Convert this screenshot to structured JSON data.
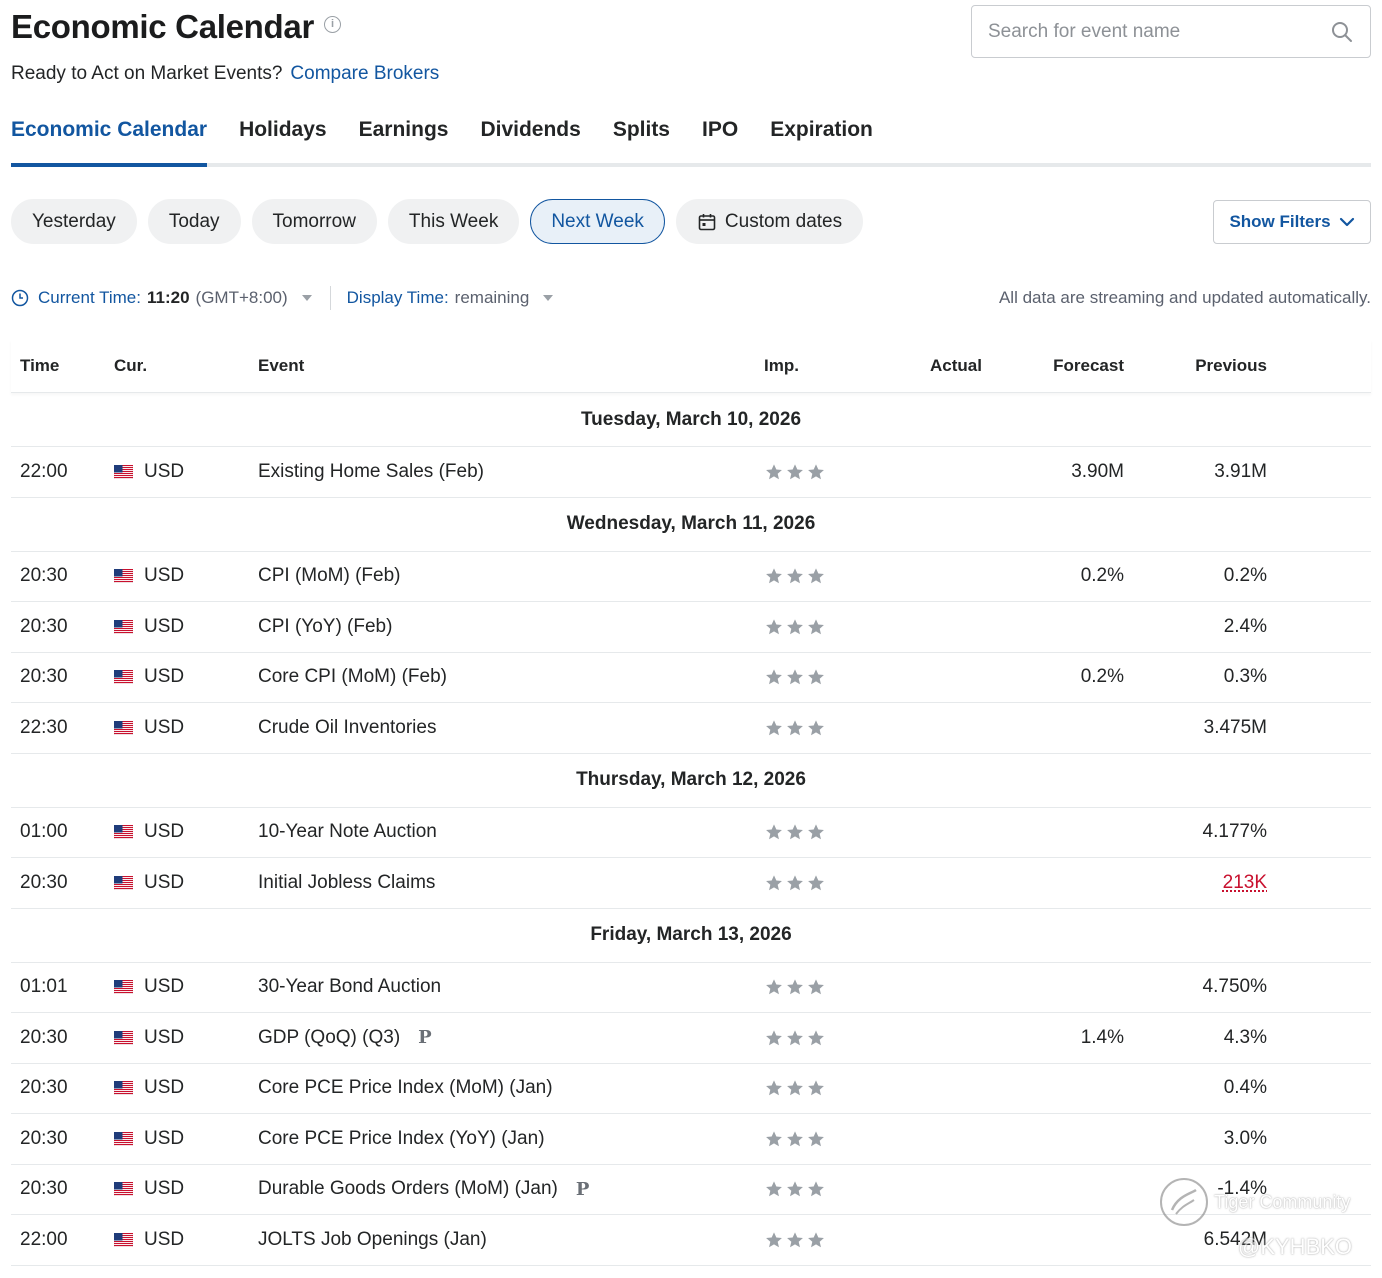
{
  "header": {
    "title": "Economic Calendar",
    "info_icon": "i",
    "subtitle": "Ready to Act on Market Events?",
    "compare_link": "Compare Brokers"
  },
  "search": {
    "placeholder": "Search for event name",
    "value": ""
  },
  "tabs": [
    "Economic Calendar",
    "Holidays",
    "Earnings",
    "Dividends",
    "Splits",
    "IPO",
    "Expiration"
  ],
  "active_tab": "Economic Calendar",
  "periods": [
    "Yesterday",
    "Today",
    "Tomorrow",
    "This Week",
    "Next Week",
    "Custom dates"
  ],
  "active_period": "Next Week",
  "filters_label": "Show Filters",
  "time_bar": {
    "current_label": "Current Time:",
    "current_value": "11:20",
    "timezone": "(GMT+8:00)",
    "display_label": "Display Time:",
    "display_value": "remaining",
    "note": "All data are streaming and updated automatically."
  },
  "columns": {
    "time": "Time",
    "currency": "Cur.",
    "event": "Event",
    "importance": "Imp.",
    "actual": "Actual",
    "forecast": "Forecast",
    "previous": "Previous"
  },
  "groups": [
    {
      "date": "Tuesday, March 10, 2026",
      "events": [
        {
          "time": "22:00",
          "cur": "USD",
          "event": "Existing Home Sales (Feb)",
          "prelim": "",
          "actual": "",
          "forecast": "3.90M",
          "previous": "3.91M",
          "prev_red": false
        }
      ]
    },
    {
      "date": "Wednesday, March 11, 2026",
      "events": [
        {
          "time": "20:30",
          "cur": "USD",
          "event": "CPI (MoM) (Feb)",
          "prelim": "",
          "actual": "",
          "forecast": "0.2%",
          "previous": "0.2%",
          "prev_red": false
        },
        {
          "time": "20:30",
          "cur": "USD",
          "event": "CPI (YoY) (Feb)",
          "prelim": "",
          "actual": "",
          "forecast": "",
          "previous": "2.4%",
          "prev_red": false
        },
        {
          "time": "20:30",
          "cur": "USD",
          "event": "Core CPI (MoM) (Feb)",
          "prelim": "",
          "actual": "",
          "forecast": "0.2%",
          "previous": "0.3%",
          "prev_red": false
        },
        {
          "time": "22:30",
          "cur": "USD",
          "event": "Crude Oil Inventories",
          "prelim": "",
          "actual": "",
          "forecast": "",
          "previous": "3.475M",
          "prev_red": false
        }
      ]
    },
    {
      "date": "Thursday, March 12, 2026",
      "events": [
        {
          "time": "01:00",
          "cur": "USD",
          "event": "10-Year Note Auction",
          "prelim": "",
          "actual": "",
          "forecast": "",
          "previous": "4.177%",
          "prev_red": false
        },
        {
          "time": "20:30",
          "cur": "USD",
          "event": "Initial Jobless Claims",
          "prelim": "",
          "actual": "",
          "forecast": "",
          "previous": "213K",
          "prev_red": true
        }
      ]
    },
    {
      "date": "Friday, March 13, 2026",
      "events": [
        {
          "time": "01:01",
          "cur": "USD",
          "event": "30-Year Bond Auction",
          "prelim": "",
          "actual": "",
          "forecast": "",
          "previous": "4.750%",
          "prev_red": false
        },
        {
          "time": "20:30",
          "cur": "USD",
          "event": "GDP (QoQ) (Q3)",
          "prelim": "P",
          "actual": "",
          "forecast": "1.4%",
          "previous": "4.3%",
          "prev_red": false
        },
        {
          "time": "20:30",
          "cur": "USD",
          "event": "Core PCE Price Index (MoM) (Jan)",
          "prelim": "",
          "actual": "",
          "forecast": "",
          "previous": "0.4%",
          "prev_red": false
        },
        {
          "time": "20:30",
          "cur": "USD",
          "event": "Core PCE Price Index (YoY) (Jan)",
          "prelim": "",
          "actual": "",
          "forecast": "",
          "previous": "3.0%",
          "prev_red": false
        },
        {
          "time": "20:30",
          "cur": "USD",
          "event": "Durable Goods Orders (MoM) (Jan)",
          "prelim": "P",
          "actual": "",
          "forecast": "",
          "previous": "-1.4%",
          "prev_red": false
        },
        {
          "time": "22:00",
          "cur": "USD",
          "event": "JOLTS Job Openings (Jan)",
          "prelim": "",
          "actual": "",
          "forecast": "",
          "previous": "6.542M",
          "prev_red": false
        }
      ]
    }
  ],
  "importance_stars": 3,
  "watermark": {
    "line1": "Tiger Community",
    "line2": "@KYHBKO"
  },
  "colors": {
    "accent": "#1256a0",
    "text": "#232526",
    "star": "#9aa0a6",
    "negative": "#c8102e",
    "pill_bg": "#f0f1f2"
  },
  "icons": {
    "search": "search-icon",
    "info": "info-icon",
    "calendar": "calendar-icon",
    "clock": "clock-icon",
    "chevron": "chevron-down-icon",
    "flag": "us-flag-icon",
    "star": "star-icon"
  }
}
